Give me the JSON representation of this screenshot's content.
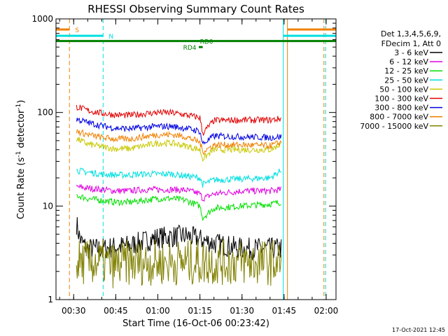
{
  "chart_data": {
    "type": "line",
    "title": "RHESSI Observing Summary Count Rates",
    "xlabel": "Start Time (16-Oct-06 00:23:42)",
    "ylabel": "Count Rate (s⁻¹ detector⁻¹)",
    "ylabel_main": "Count Rate (s",
    "ylabel_sup1": "-1",
    "ylabel_mid": " detector",
    "ylabel_sup2": "-1",
    "ylabel_end": ")",
    "yscale": "log",
    "ylim": [
      1,
      1000
    ],
    "xlim_minutes": [
      23.7,
      123.5
    ],
    "x_ticks": [
      {
        "minute": 30,
        "label": "00:30"
      },
      {
        "minute": 45,
        "label": "00:45"
      },
      {
        "minute": 60,
        "label": "01:00"
      },
      {
        "minute": 75,
        "label": "01:15"
      },
      {
        "minute": 90,
        "label": "01:30"
      },
      {
        "minute": 105,
        "label": "01:45"
      },
      {
        "minute": 120,
        "label": "02:00"
      }
    ],
    "y_ticks": [
      {
        "value": 1,
        "label": "1"
      },
      {
        "value": 10,
        "label": "10"
      },
      {
        "value": 100,
        "label": "100"
      },
      {
        "value": 1000,
        "label": "1000"
      }
    ],
    "legend": {
      "position": "right",
      "header": [
        "Det 1,3,4,5,6,9,",
        "FDecim 1, Att 0"
      ]
    },
    "series": [
      {
        "name": "3 - 6 keV",
        "color": "#000000",
        "x": [
          31,
          32,
          33,
          35,
          40,
          50,
          60,
          70,
          80,
          90,
          100,
          104
        ],
        "y": [
          6.5,
          4.8,
          4.0,
          3.5,
          3.5,
          3.8,
          4.6,
          4.8,
          4.0,
          3.5,
          3.5,
          3.5
        ]
      },
      {
        "name": "6 - 12 keV",
        "color": "#e000e0",
        "x": [
          31,
          35,
          40,
          45,
          50,
          55,
          60,
          65,
          70,
          75,
          76,
          80,
          90,
          100,
          104
        ],
        "y": [
          16,
          15.5,
          15,
          14.5,
          14.5,
          15,
          15,
          15,
          14.8,
          13.5,
          12,
          13.5,
          14.5,
          14.5,
          15
        ]
      },
      {
        "name": "12 - 25 keV",
        "color": "#00e000",
        "x": [
          31,
          35,
          40,
          45,
          50,
          55,
          60,
          65,
          70,
          75,
          76,
          80,
          90,
          100,
          104
        ],
        "y": [
          13,
          12,
          11.5,
          11,
          11,
          11.5,
          12,
          12,
          11.5,
          10,
          7.5,
          9.5,
          10,
          10.5,
          11
        ]
      },
      {
        "name": "25 - 50 keV",
        "color": "#00e0e0",
        "x": [
          31,
          35,
          40,
          45,
          50,
          55,
          60,
          65,
          70,
          75,
          76,
          80,
          90,
          100,
          104
        ],
        "y": [
          24,
          23,
          22,
          21.5,
          21.5,
          22,
          22,
          22,
          21,
          20,
          17,
          19,
          19.5,
          20,
          24
        ]
      },
      {
        "name": "50 - 100 keV",
        "color": "#c8c800",
        "x": [
          31,
          35,
          40,
          45,
          50,
          55,
          60,
          65,
          70,
          75,
          76,
          80,
          90,
          100,
          104
        ],
        "y": [
          52,
          46,
          43,
          41,
          41,
          44,
          47,
          47,
          44,
          40,
          32,
          40,
          40,
          40,
          46
        ]
      },
      {
        "name": "100 - 300 keV",
        "color": "#e00000",
        "x": [
          31,
          35,
          40,
          45,
          50,
          55,
          60,
          65,
          70,
          75,
          76,
          80,
          90,
          100,
          104
        ],
        "y": [
          115,
          105,
          98,
          94,
          93,
          97,
          100,
          99,
          94,
          88,
          60,
          82,
          83,
          83,
          86
        ]
      },
      {
        "name": "300 - 800 keV",
        "color": "#0000e0",
        "x": [
          31,
          35,
          40,
          45,
          50,
          55,
          60,
          65,
          70,
          75,
          76,
          80,
          90,
          100,
          104
        ],
        "y": [
          85,
          78,
          72,
          68,
          67,
          69,
          71,
          71,
          68,
          63,
          46,
          56,
          55,
          54,
          55
        ]
      },
      {
        "name": "800 - 7000 keV",
        "color": "#f08000",
        "x": [
          31,
          35,
          40,
          45,
          50,
          55,
          60,
          65,
          70,
          75,
          76,
          80,
          90,
          100,
          104
        ],
        "y": [
          63,
          58,
          54,
          52,
          52,
          55,
          58,
          58,
          55,
          48,
          38,
          45,
          45,
          44,
          48
        ]
      },
      {
        "name": "7000 - 15000 keV",
        "color": "#808000",
        "x": [
          31,
          35,
          40,
          45,
          50,
          55,
          60,
          65,
          70,
          75,
          80,
          90,
          100,
          104
        ],
        "y": [
          2.5,
          2.5,
          2.5,
          2.3,
          2.5,
          2.5,
          2.5,
          2.5,
          2.5,
          2.5,
          2.5,
          2.5,
          2.5,
          2.5
        ]
      }
    ],
    "vertical_markers": [
      {
        "minute": 28.5,
        "color": "#f08000",
        "style": "dashed"
      },
      {
        "minute": 40.5,
        "color": "#00e0e0",
        "style": "dashed"
      },
      {
        "minute": 104.7,
        "color": "#00e0e0",
        "style": "solid"
      },
      {
        "minute": 106.2,
        "color": "#f08000",
        "style": "solid"
      },
      {
        "minute": 119.2,
        "color": "#f08000",
        "style": "dashed"
      },
      {
        "minute": 119.8,
        "color": "#00e0e0",
        "style": "dashed"
      }
    ],
    "state_bars": [
      {
        "label": "S",
        "color": "#f08000",
        "y": 770,
        "segments": [
          [
            23.7,
            28.5
          ],
          [
            106.2,
            123.5
          ]
        ],
        "label_minute": 30.5
      },
      {
        "label": "N",
        "color": "#00e0e0",
        "y": 660,
        "segments": [
          [
            23.7,
            40.5
          ],
          [
            104.7,
            123.5
          ]
        ],
        "label_minute": 42.5
      },
      {
        "label": "RD0",
        "color": "#008000",
        "y": 580,
        "segments": [
          [
            23.7,
            123.5
          ]
        ],
        "label_minute": 75
      },
      {
        "label": "RD4",
        "color": "#008000",
        "y": 500,
        "segments": [
          [
            74.6,
            76.0
          ]
        ],
        "label_minute": 69
      }
    ],
    "timestamp": "17-Oct-2021 12:45"
  }
}
